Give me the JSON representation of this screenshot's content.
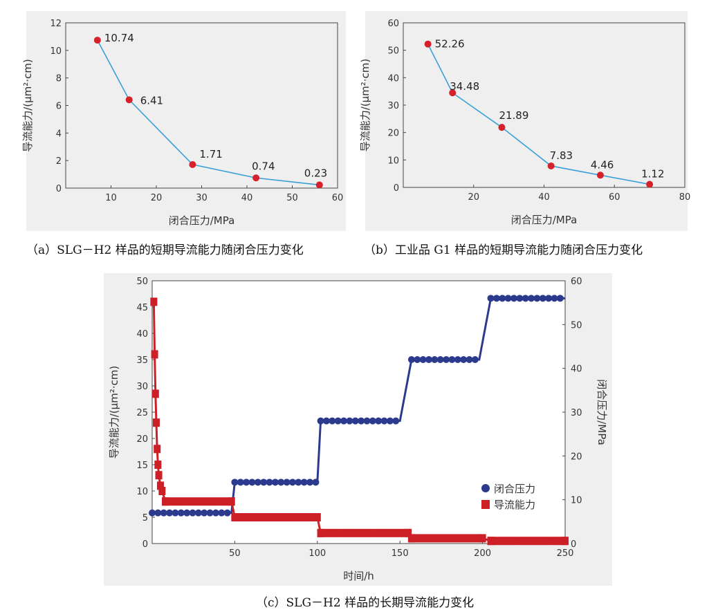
{
  "captions": {
    "a": "（a）SLG－H2 样品的短期导流能力随闭合压力变化",
    "b": "（b）工业品 G1 样品的短期导流能力随闭合压力变化",
    "c": "（c）SLG－H2 样品的长期导流能力变化"
  },
  "colors": {
    "line": "#3aa0d8",
    "point": "#d6202a",
    "blue": "#2c3a8e",
    "red": "#cc1f26"
  },
  "chart_data": [
    {
      "type": "line",
      "xlabel": "闭合压力/MPa",
      "ylabel": "导流能力/(μm²·cm)",
      "xlim": [
        0,
        60
      ],
      "ylim": [
        0,
        12
      ],
      "xticks": [
        10,
        20,
        30,
        40,
        50,
        60
      ],
      "yticks": [
        0,
        2,
        4,
        6,
        8,
        10,
        12
      ],
      "x": [
        7,
        14,
        28,
        42,
        56
      ],
      "values": [
        10.74,
        6.41,
        1.71,
        0.74,
        0.23
      ],
      "labels": [
        "10.74",
        "6.41",
        "1.71",
        "0.74",
        "0.23"
      ]
    },
    {
      "type": "line",
      "xlabel": "闭合压力/MPa",
      "ylabel": "导流能力/(μm²·cm)",
      "xlim": [
        0,
        80
      ],
      "ylim": [
        0,
        60
      ],
      "xticks": [
        20,
        40,
        60,
        80
      ],
      "yticks": [
        0,
        10,
        20,
        30,
        40,
        50,
        60
      ],
      "x": [
        7,
        14,
        28,
        42,
        56,
        70
      ],
      "values": [
        52.26,
        34.48,
        21.89,
        7.83,
        4.46,
        1.12
      ],
      "labels": [
        "52.26",
        "34.48",
        "21.89",
        "7.83",
        "4.46",
        "1.12"
      ]
    },
    {
      "type": "line",
      "xlabel": "时间/h",
      "ylabel": "导流能力/(μm²·cm)",
      "y2label": "闭合压力/MPa",
      "xlim": [
        0,
        250
      ],
      "ylim": [
        0,
        50
      ],
      "y2lim": [
        0,
        60
      ],
      "xticks": [
        50,
        100,
        150,
        200,
        250
      ],
      "yticks": [
        0,
        5,
        10,
        15,
        20,
        25,
        30,
        35,
        40,
        45,
        50
      ],
      "y2ticks": [
        0,
        10,
        20,
        30,
        40,
        50,
        60
      ],
      "legend": "right",
      "series": [
        {
          "name": "闭合压力",
          "axis": "right",
          "x": [
            0,
            48,
            50,
            100,
            102,
            150,
            157,
            198,
            205,
            250
          ],
          "values": [
            7,
            7,
            14,
            14,
            28,
            28,
            42,
            42,
            56,
            56
          ]
        },
        {
          "name": "导流能力",
          "axis": "left",
          "x": [
            1,
            1.5,
            2,
            2.5,
            3,
            3.5,
            4,
            5,
            6,
            8,
            48,
            50,
            100,
            102,
            155,
            157,
            200,
            205,
            250
          ],
          "values": [
            46,
            36,
            28.5,
            23,
            18,
            15,
            13,
            11,
            10,
            8,
            8,
            5,
            5,
            2,
            2,
            1,
            1,
            0.5,
            0.5
          ]
        }
      ]
    }
  ]
}
